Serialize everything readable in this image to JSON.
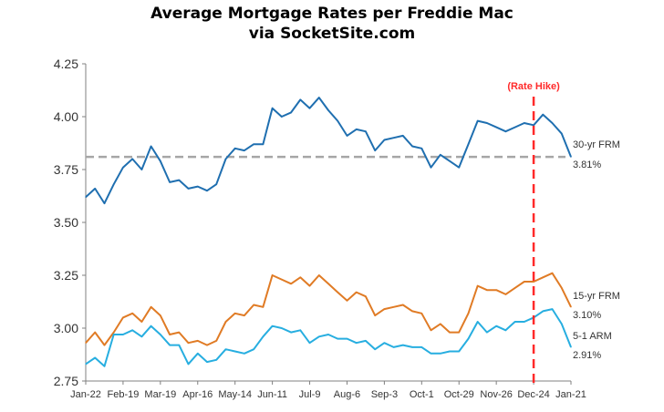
{
  "chart_data": {
    "type": "line",
    "title": "Average Mortgage Rates per Freddie Mac",
    "subtitle": "via SocketSite.com",
    "x_tick_labels": [
      "Jan-22",
      "Feb-19",
      "Mar-19",
      "Apr-16",
      "May-14",
      "Jun-11",
      "Jul-9",
      "Aug-6",
      "Sep-3",
      "Oct-1",
      "Oct-29",
      "Nov-26",
      "Dec-24",
      "Jan-21"
    ],
    "ylim": [
      2.75,
      4.25
    ],
    "y_ticks": [
      "2.75",
      "3.00",
      "3.25",
      "3.50",
      "3.75",
      "4.00",
      "4.25"
    ],
    "grid": false,
    "reference_line": {
      "y": 3.81,
      "style": "dashed",
      "color": "#a6a6a6"
    },
    "annotation": {
      "label": "(Rate Hike)",
      "x_index": 48,
      "color": "#ff2a2a"
    },
    "series": [
      {
        "name": "30-yr FRM",
        "end_label": "3.81%",
        "color": "#1f6fb0",
        "values": [
          3.62,
          3.66,
          3.59,
          3.68,
          3.76,
          3.8,
          3.75,
          3.86,
          3.79,
          3.69,
          3.7,
          3.66,
          3.67,
          3.65,
          3.68,
          3.8,
          3.85,
          3.84,
          3.87,
          3.87,
          4.04,
          4.0,
          4.02,
          4.08,
          4.04,
          4.09,
          4.03,
          3.98,
          3.91,
          3.94,
          3.93,
          3.84,
          3.89,
          3.9,
          3.91,
          3.86,
          3.85,
          3.76,
          3.82,
          3.79,
          3.76,
          3.87,
          3.98,
          3.97,
          3.95,
          3.93,
          3.95,
          3.97,
          3.96,
          4.01,
          3.97,
          3.92,
          3.81
        ]
      },
      {
        "name": "15-yr FRM",
        "end_label": "3.10%",
        "color": "#e07b25",
        "values": [
          2.93,
          2.98,
          2.92,
          2.98,
          3.05,
          3.07,
          3.03,
          3.1,
          3.06,
          2.97,
          2.98,
          2.93,
          2.94,
          2.92,
          2.94,
          3.03,
          3.07,
          3.06,
          3.11,
          3.1,
          3.25,
          3.23,
          3.21,
          3.24,
          3.2,
          3.25,
          3.21,
          3.17,
          3.13,
          3.17,
          3.15,
          3.06,
          3.09,
          3.1,
          3.11,
          3.08,
          3.07,
          2.99,
          3.02,
          2.98,
          2.98,
          3.07,
          3.2,
          3.18,
          3.18,
          3.16,
          3.19,
          3.22,
          3.22,
          3.24,
          3.26,
          3.19,
          3.1
        ]
      },
      {
        "name": "5-1 ARM",
        "end_label": "2.91%",
        "color": "#27aee0",
        "values": [
          2.83,
          2.86,
          2.82,
          2.97,
          2.97,
          2.99,
          2.96,
          3.01,
          2.97,
          2.92,
          2.92,
          2.83,
          2.88,
          2.84,
          2.85,
          2.9,
          2.89,
          2.88,
          2.9,
          2.96,
          3.01,
          3.0,
          2.98,
          2.99,
          2.93,
          2.96,
          2.97,
          2.95,
          2.95,
          2.93,
          2.94,
          2.9,
          2.93,
          2.91,
          2.92,
          2.91,
          2.91,
          2.88,
          2.88,
          2.89,
          2.89,
          2.95,
          3.03,
          2.98,
          3.01,
          2.99,
          3.03,
          3.03,
          3.05,
          3.08,
          3.09,
          3.02,
          2.91
        ]
      }
    ]
  }
}
